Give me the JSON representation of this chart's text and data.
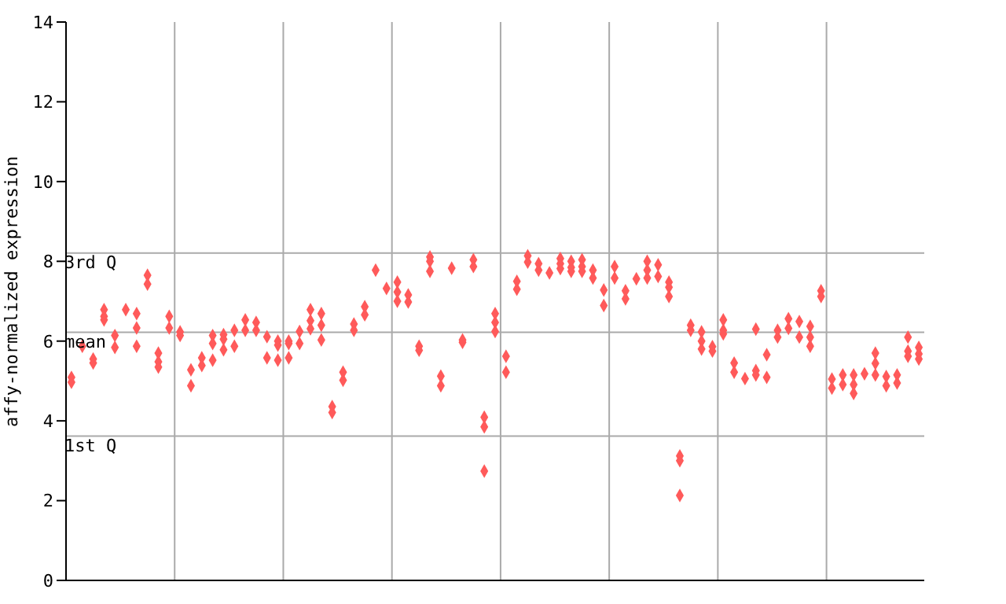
{
  "chart_data": {
    "type": "scatter",
    "ylabel": "affy-normalized expression",
    "categories": [
      null,
      null,
      null,
      null,
      null,
      null,
      null,
      null,
      null,
      null,
      null,
      null,
      null,
      null,
      null,
      null,
      null,
      null,
      null,
      null,
      null,
      null,
      null,
      null,
      null,
      null,
      null,
      null,
      null,
      null,
      null,
      null,
      null,
      null,
      null,
      null,
      null,
      null,
      null,
      null,
      null,
      null,
      null,
      null,
      null,
      null,
      null,
      null,
      null,
      null,
      null,
      null,
      null,
      null,
      null,
      null,
      null,
      null,
      null,
      null,
      null,
      null,
      null,
      null,
      null,
      null,
      null,
      null,
      null,
      null,
      null,
      null,
      null,
      null,
      null,
      null,
      null,
      null,
      null
    ],
    "series": [
      {
        "color": "#ff5a5a",
        "values": [
          5.09,
          5.87,
          5.55,
          6.79,
          6.14,
          6.79,
          6.69,
          7.65,
          5.7,
          6.62,
          6.23,
          5.28,
          5.58,
          6.14,
          6.16,
          6.27,
          6.53,
          6.47,
          6.11,
          6.0,
          6.0,
          6.24,
          6.79,
          6.69,
          4.36,
          5.22,
          6.43,
          6.86,
          7.78,
          7.32,
          7.48,
          7.16,
          5.87,
          8.11,
          5.12,
          7.83,
          6.03,
          8.04,
          4.09,
          6.69,
          5.62,
          7.5,
          8.14,
          7.94,
          7.71,
          8.07,
          8.0,
          8.04,
          7.78,
          7.28,
          7.87,
          7.26,
          7.56,
          8.0,
          7.91,
          7.48,
          3.12,
          6.4,
          6.23,
          5.86,
          6.53,
          5.45,
          5.06,
          6.3,
          5.66,
          6.27,
          6.56,
          6.49,
          6.37,
          7.26,
          5.05,
          5.15,
          5.15,
          5.18,
          5.7,
          5.11,
          5.15,
          6.1,
          5.84
        ]
      },
      {
        "color": "#ff5a5a",
        "values": [
          4.97,
          null,
          5.45,
          6.62,
          5.84,
          null,
          6.33,
          7.43,
          5.48,
          6.33,
          6.14,
          4.88,
          5.39,
          5.94,
          6.05,
          5.87,
          6.27,
          6.27,
          5.58,
          5.9,
          5.94,
          5.94,
          6.51,
          6.4,
          4.21,
          5.02,
          6.27,
          6.66,
          null,
          null,
          7.23,
          6.98,
          5.77,
          8.0,
          4.88,
          null,
          5.97,
          7.87,
          3.85,
          6.47,
          5.22,
          7.3,
          7.98,
          7.78,
          null,
          7.94,
          7.85,
          7.87,
          7.58,
          6.89,
          7.58,
          7.06,
          null,
          7.78,
          7.62,
          7.35,
          3.0,
          6.27,
          6.0,
          5.75,
          6.27,
          5.22,
          null,
          5.26,
          5.09,
          6.1,
          6.32,
          6.1,
          6.1,
          7.12,
          4.82,
          4.91,
          4.91,
          null,
          5.44,
          4.88,
          4.95,
          5.75,
          5.68
        ]
      },
      {
        "color": "#ff5a5a",
        "values": [
          null,
          null,
          null,
          6.53,
          null,
          null,
          5.87,
          null,
          5.35,
          null,
          null,
          null,
          null,
          5.52,
          5.78,
          null,
          null,
          null,
          null,
          5.52,
          5.58,
          null,
          6.31,
          6.03,
          null,
          null,
          null,
          null,
          null,
          null,
          7.0,
          null,
          null,
          7.75,
          null,
          null,
          null,
          null,
          2.74,
          6.24,
          null,
          null,
          null,
          null,
          null,
          7.82,
          7.75,
          7.75,
          null,
          null,
          null,
          null,
          null,
          7.58,
          null,
          7.12,
          2.13,
          null,
          5.8,
          null,
          6.18,
          null,
          null,
          5.15,
          null,
          null,
          null,
          null,
          5.87,
          null,
          null,
          null,
          4.69,
          null,
          5.15,
          null,
          null,
          5.62,
          5.55
        ]
      }
    ],
    "marker": "diamond",
    "ylim": [
      0,
      14
    ],
    "yticks": [
      0,
      2,
      4,
      6,
      8,
      10,
      12,
      14
    ],
    "grid": "x",
    "ref_lines": [
      {
        "axis": "y",
        "value": 8.21,
        "label": "3rd Q",
        "color": "#aaaaaa"
      },
      {
        "axis": "y",
        "value": 6.22,
        "label": "mean",
        "color": "#aaaaaa"
      },
      {
        "axis": "y",
        "value": 3.62,
        "label": "1st Q",
        "color": "#aaaaaa"
      }
    ]
  }
}
